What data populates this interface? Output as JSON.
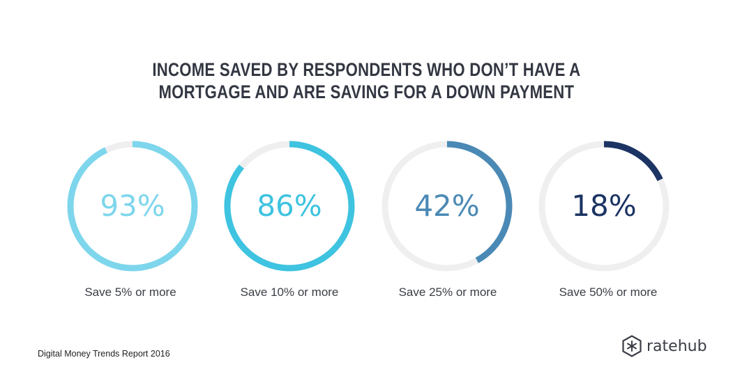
{
  "title_lines": [
    "INCOME SAVED BY RESPONDENTS WHO DON’T HAVE A",
    "MORTGAGE AND ARE SAVING FOR A DOWN PAYMENT"
  ],
  "colors": {
    "track": "#efefef",
    "c1": "#7dd6ec",
    "c2": "#3ec3e0",
    "c3": "#4a89b5",
    "c4": "#1c3463"
  },
  "chart_data": {
    "type": "donut",
    "title": "INCOME SAVED BY RESPONDENTS WHO DON’T HAVE A MORTGAGE AND ARE SAVING FOR A DOWN PAYMENT",
    "categories": [
      "Save 5% or more",
      "Save 10% or more",
      "Save 25% or more",
      "Save 50% or more"
    ],
    "values": [
      93,
      86,
      42,
      18
    ],
    "value_labels": [
      "93%",
      "86%",
      "42%",
      "18%"
    ],
    "unit": "%"
  },
  "source": "Digital Money Trends Report 2016",
  "brand": {
    "name": "ratehub",
    "icon": "ratehub-hexagon-icon"
  }
}
